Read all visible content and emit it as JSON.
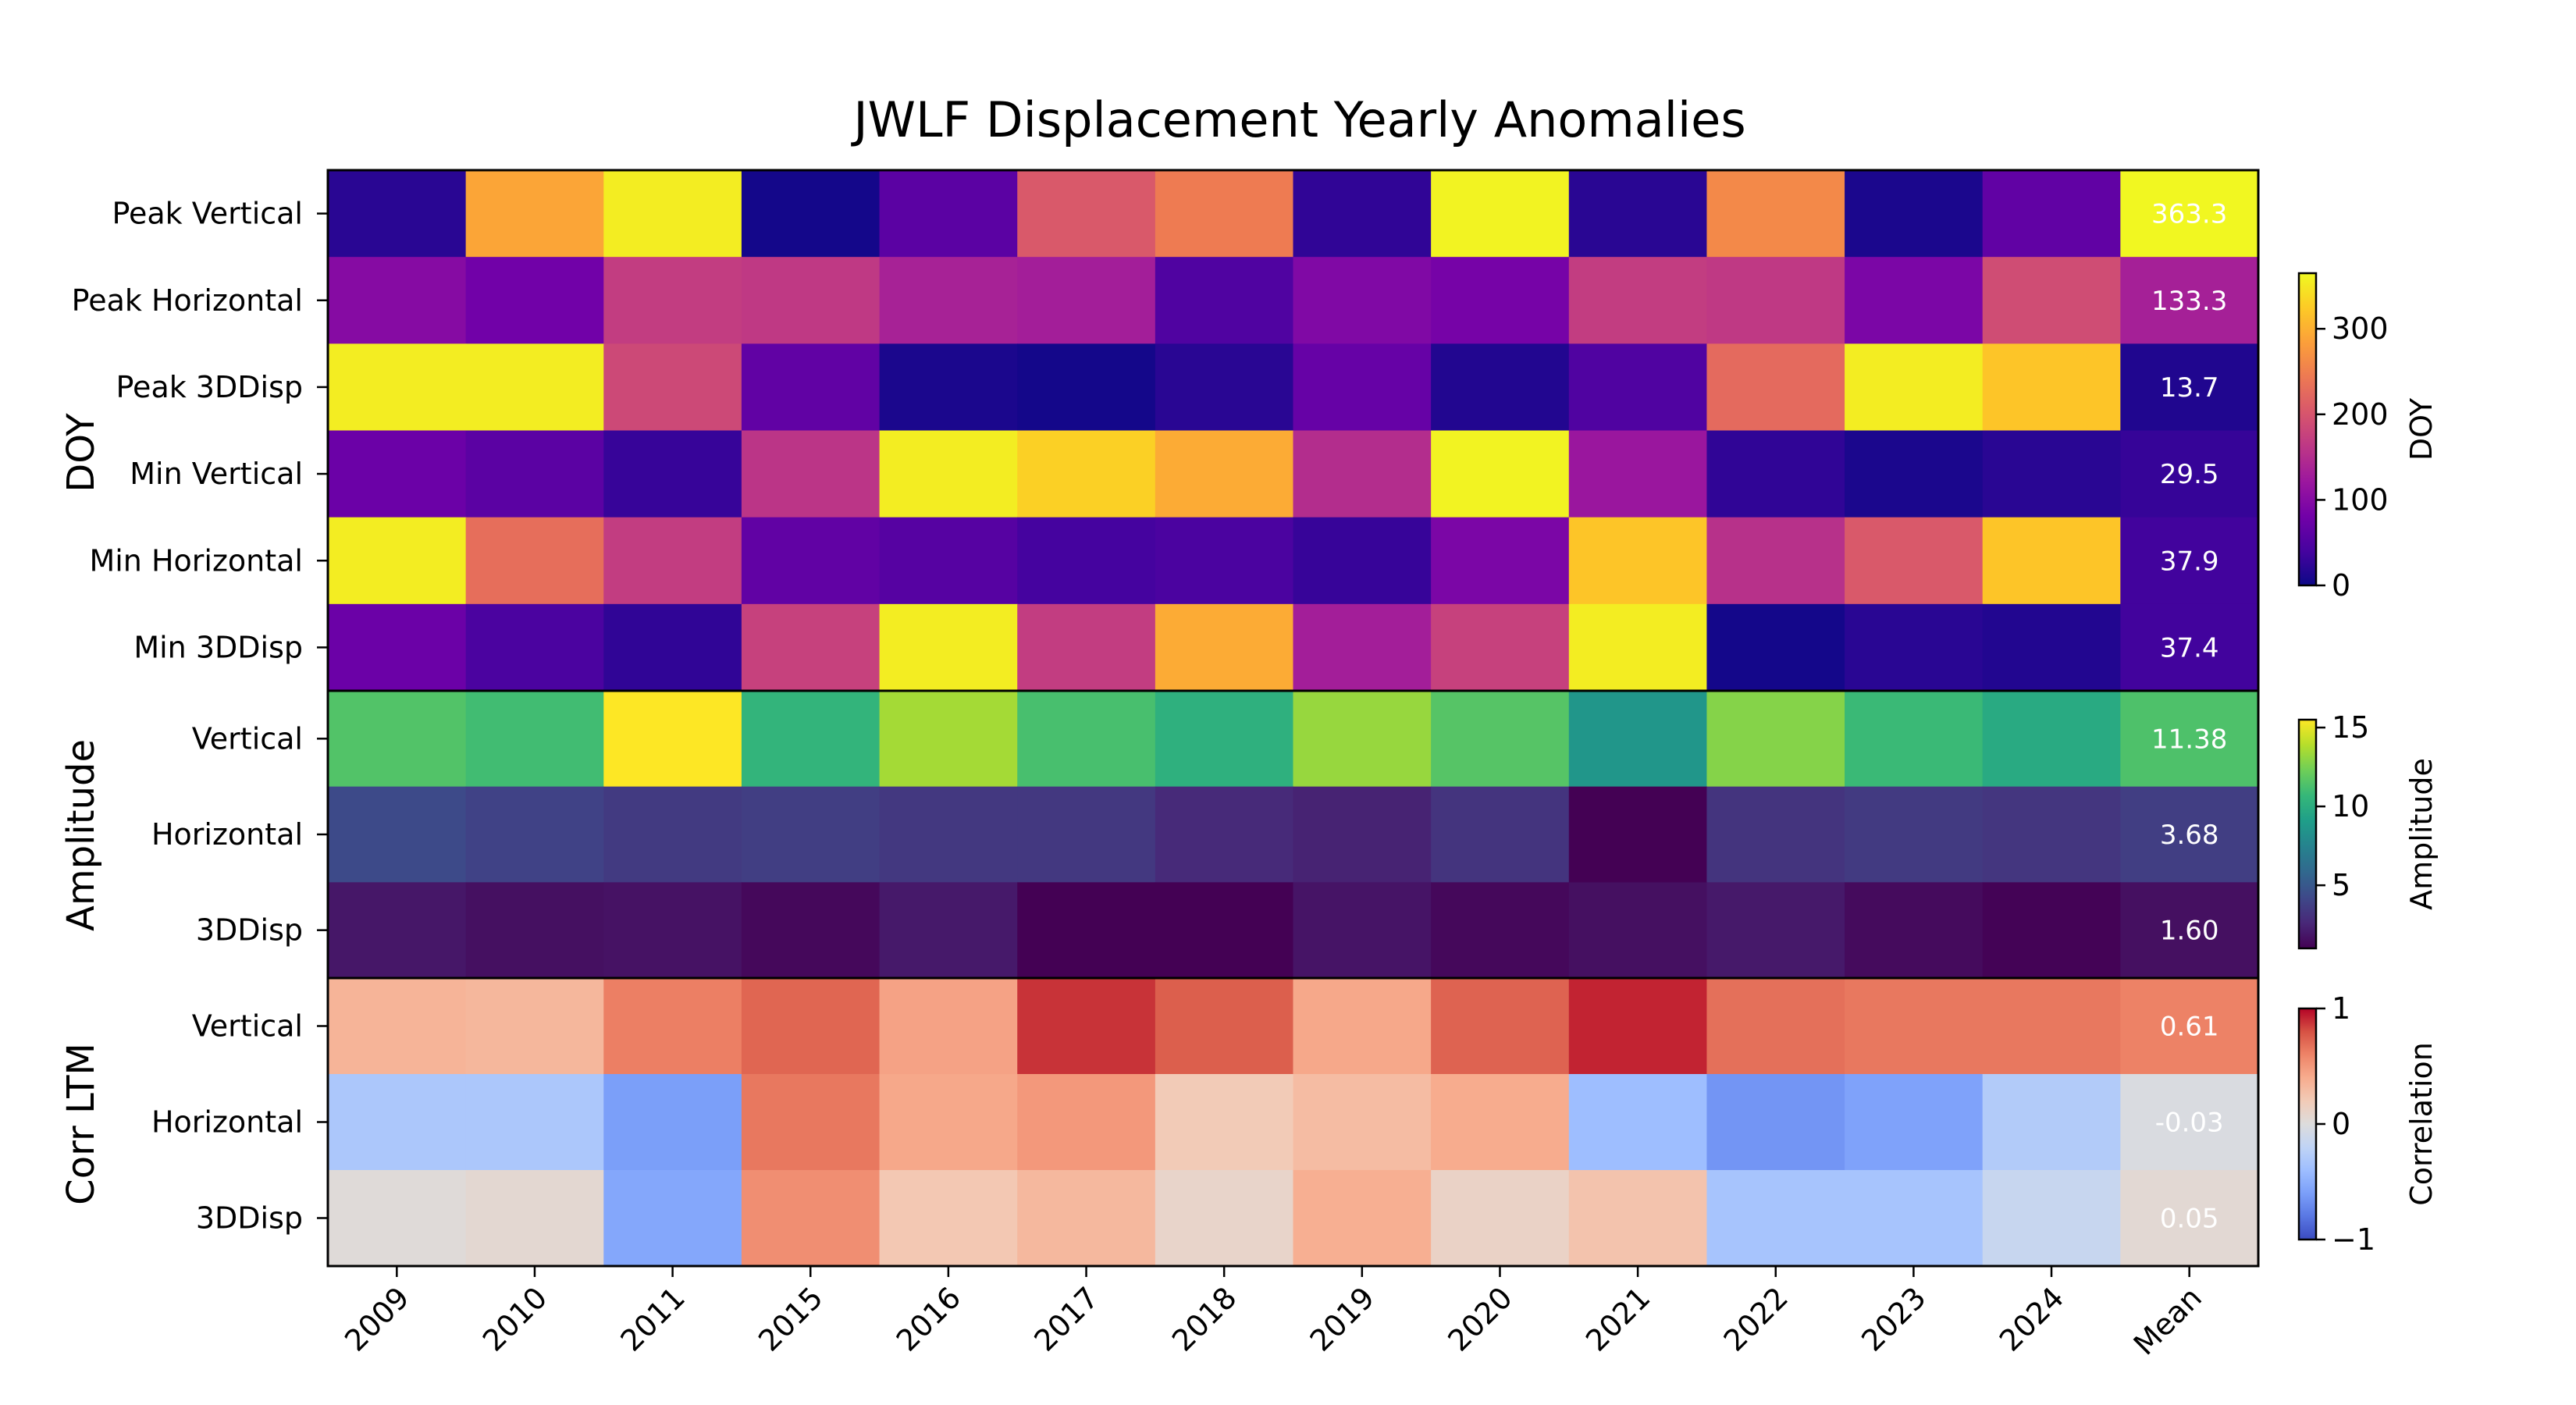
{
  "chart_data": {
    "type": "heatmap",
    "title": "JWLF Displacement Yearly Anomalies",
    "columns": [
      "2009",
      "2010",
      "2011",
      "2015",
      "2016",
      "2017",
      "2018",
      "2019",
      "2020",
      "2021",
      "2022",
      "2023",
      "2024",
      "Mean"
    ],
    "groups": [
      {
        "name": "DOY",
        "colormap": "plasma",
        "range": [
          0,
          365
        ],
        "colorbar_label": "DOY",
        "colorbar_ticks": [
          0,
          100,
          200,
          300
        ],
        "rows": [
          {
            "label": "Peak Vertical",
            "values": [
              20,
              290,
              355,
              5,
              60,
              205,
              245,
              25,
              360,
              20,
              260,
              10,
              65,
              363.3
            ],
            "mean_label": "363.3"
          },
          {
            "label": "Peak Horizontal",
            "values": [
              100,
              80,
              170,
              165,
              135,
              130,
              50,
              95,
              85,
              170,
              165,
              90,
              190,
              133.3
            ],
            "mean_label": "133.3"
          },
          {
            "label": "Peak 3DDisp",
            "values": [
              355,
              355,
              185,
              65,
              10,
              5,
              20,
              70,
              15,
              50,
              225,
              355,
              320,
              13.7
            ],
            "mean_label": "13.7"
          },
          {
            "label": "Min Vertical",
            "values": [
              75,
              60,
              30,
              160,
              355,
              330,
              295,
              150,
              360,
              120,
              25,
              10,
              20,
              29.5
            ],
            "mean_label": "29.5"
          },
          {
            "label": "Min Horizontal",
            "values": [
              355,
              230,
              170,
              65,
              55,
              40,
              45,
              30,
              90,
              320,
              155,
              205,
              320,
              37.9
            ],
            "mean_label": "37.9"
          },
          {
            "label": "Min 3DDisp",
            "values": [
              75,
              45,
              25,
              175,
              355,
              170,
              295,
              130,
              175,
              355,
              5,
              20,
              15,
              37.4
            ],
            "mean_label": "37.4"
          }
        ]
      },
      {
        "name": "Amplitude",
        "colormap": "viridis",
        "range": [
          1,
          15.5
        ],
        "colorbar_label": "Amplitude",
        "colorbar_ticks": [
          5,
          10,
          15
        ],
        "rows": [
          {
            "label": "Vertical",
            "values": [
              11.5,
              11.0,
              15.5,
              10.5,
              13.5,
              11.2,
              10.2,
              13.2,
              11.6,
              8.6,
              12.8,
              10.8,
              9.8,
              11.38
            ],
            "mean_label": "11.38"
          },
          {
            "label": "Horizontal",
            "values": [
              4.3,
              3.9,
              3.5,
              3.7,
              3.4,
              3.4,
              2.7,
              2.4,
              3.2,
              0.9,
              3.2,
              3.5,
              3.3,
              3.68
            ],
            "mean_label": "3.68"
          },
          {
            "label": "3DDisp",
            "values": [
              1.9,
              1.6,
              1.7,
              1.3,
              2.0,
              1.0,
              1.0,
              1.8,
              1.3,
              1.6,
              2.0,
              1.4,
              1.1,
              1.6
            ],
            "mean_label": "1.60"
          }
        ]
      },
      {
        "name": "Corr LTM",
        "colormap": "coolwarm",
        "range": [
          -1,
          1
        ],
        "colorbar_label": "Correlation",
        "colorbar_ticks": [
          -1,
          0,
          1
        ],
        "colorbar_tick_labels": [
          "−1",
          "0",
          "1"
        ],
        "rows": [
          {
            "label": "Vertical",
            "values": [
              0.35,
              0.33,
              0.62,
              0.72,
              0.45,
              0.88,
              0.75,
              0.42,
              0.73,
              0.92,
              0.68,
              0.65,
              0.65,
              0.61
            ],
            "mean_label": "0.61"
          },
          {
            "label": "Horizontal",
            "values": [
              -0.32,
              -0.32,
              -0.6,
              0.65,
              0.42,
              0.5,
              0.2,
              0.3,
              0.4,
              -0.4,
              -0.65,
              -0.58,
              -0.28,
              -0.03
            ],
            "mean_label": "-0.03"
          },
          {
            "label": "3DDisp",
            "values": [
              0.02,
              0.06,
              -0.55,
              0.55,
              0.22,
              0.32,
              0.1,
              0.38,
              0.12,
              0.25,
              -0.35,
              -0.35,
              -0.15,
              0.05
            ],
            "mean_label": "0.05"
          }
        ]
      }
    ]
  }
}
